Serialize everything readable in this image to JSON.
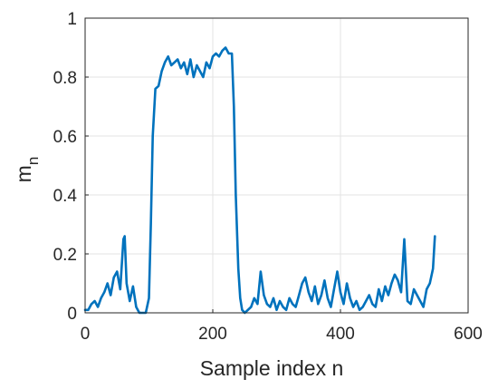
{
  "chart_data": {
    "type": "line",
    "title": "",
    "xlabel": "Sample index n",
    "ylabel": "m",
    "ylabel_subscript": "n",
    "xlim": [
      0,
      600
    ],
    "ylim": [
      0,
      1
    ],
    "xticks": [
      0,
      200,
      400,
      600
    ],
    "yticks": [
      0,
      0.2,
      0.4,
      0.6,
      0.8,
      1
    ],
    "xtick_labels": [
      "0",
      "200",
      "400",
      "600"
    ],
    "ytick_labels": [
      "0",
      "0.2",
      "0.4",
      "0.6",
      "0.8",
      "1"
    ],
    "grid": true,
    "line_color": "#0072BD",
    "series": [
      {
        "x": [
          0,
          5,
          10,
          15,
          20,
          25,
          30,
          35,
          40,
          45,
          50,
          55,
          60,
          62,
          65,
          70,
          75,
          80,
          85,
          90,
          95,
          100,
          103,
          106,
          110,
          115,
          120,
          125,
          130,
          135,
          140,
          145,
          150,
          155,
          160,
          165,
          170,
          175,
          180,
          185,
          190,
          195,
          200,
          205,
          210,
          215,
          220,
          225,
          230,
          233,
          236,
          240,
          243,
          246,
          250,
          255,
          260,
          265,
          270,
          275,
          280,
          285,
          290,
          295,
          300,
          305,
          310,
          315,
          320,
          325,
          330,
          335,
          340,
          345,
          350,
          355,
          360,
          365,
          370,
          375,
          380,
          385,
          390,
          395,
          400,
          405,
          410,
          415,
          420,
          425,
          430,
          435,
          440,
          445,
          450,
          455,
          460,
          465,
          470,
          475,
          480,
          485,
          490,
          495,
          500,
          505,
          510,
          515,
          520,
          525,
          530,
          535,
          540,
          545,
          548
        ],
        "y": [
          0.01,
          0.01,
          0.03,
          0.04,
          0.02,
          0.05,
          0.07,
          0.1,
          0.06,
          0.12,
          0.14,
          0.08,
          0.25,
          0.26,
          0.1,
          0.04,
          0.09,
          0.02,
          0.0,
          0.0,
          0.0,
          0.05,
          0.3,
          0.6,
          0.76,
          0.77,
          0.82,
          0.85,
          0.87,
          0.84,
          0.85,
          0.86,
          0.83,
          0.85,
          0.81,
          0.86,
          0.8,
          0.84,
          0.82,
          0.8,
          0.85,
          0.83,
          0.87,
          0.88,
          0.87,
          0.89,
          0.9,
          0.88,
          0.88,
          0.7,
          0.4,
          0.15,
          0.05,
          0.01,
          0.0,
          0.01,
          0.02,
          0.05,
          0.03,
          0.14,
          0.06,
          0.03,
          0.02,
          0.05,
          0.01,
          0.04,
          0.02,
          0.01,
          0.05,
          0.03,
          0.02,
          0.06,
          0.1,
          0.12,
          0.07,
          0.04,
          0.09,
          0.03,
          0.06,
          0.11,
          0.05,
          0.02,
          0.08,
          0.14,
          0.07,
          0.03,
          0.1,
          0.05,
          0.02,
          0.04,
          0.01,
          0.02,
          0.04,
          0.06,
          0.03,
          0.02,
          0.08,
          0.04,
          0.09,
          0.06,
          0.1,
          0.13,
          0.11,
          0.07,
          0.25,
          0.04,
          0.03,
          0.08,
          0.06,
          0.04,
          0.02,
          0.08,
          0.1,
          0.15,
          0.26
        ]
      }
    ]
  }
}
